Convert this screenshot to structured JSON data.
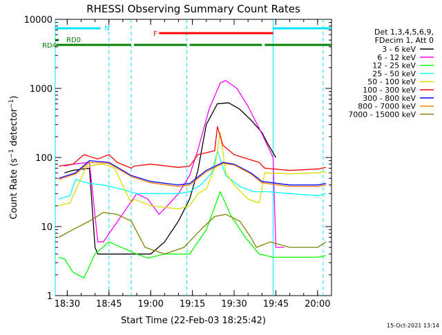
{
  "chart_data": {
    "type": "line",
    "title": "RHESSI Observing Summary Count Rates",
    "xlabel": "Start Time (22-Feb-03 18:25:42)",
    "ylabel": "Count Rate (s⁻¹ detector⁻¹)",
    "ylabel_parts": {
      "main": "Count Rate (s",
      "sup1": "−1",
      "mid": " detector",
      "sup2": "−1",
      "end": ")"
    },
    "y_scale": "log",
    "ylim": [
      1,
      10000
    ],
    "xlim": [
      "18:25:42",
      "20:05:00"
    ],
    "y_ticks": [
      {
        "value": 1,
        "label": "1"
      },
      {
        "value": 10,
        "label": "10"
      },
      {
        "value": 100,
        "label": "100"
      },
      {
        "value": 1000,
        "label": "1000"
      },
      {
        "value": 10000,
        "label": "10000"
      }
    ],
    "x_ticks": [
      {
        "t": "18:30",
        "label": "18:30"
      },
      {
        "t": "18:45",
        "label": "18:45"
      },
      {
        "t": "19:00",
        "label": "19:00"
      },
      {
        "t": "19:15",
        "label": "19:15"
      },
      {
        "t": "19:30",
        "label": "19:30"
      },
      {
        "t": "19:45",
        "label": "19:45"
      },
      {
        "t": "20:00",
        "label": "20:00"
      }
    ],
    "legend": {
      "position": "right",
      "header": [
        "Det 1,3,4,5,6,9,",
        "FDecim 1, Att 0"
      ]
    },
    "series": [
      {
        "name": "3 - 6 keV",
        "color": "#000000",
        "x": [
          "18:29",
          "18:32",
          "18:38",
          "18:40",
          "18:41",
          "18:43",
          "19:00",
          "19:05",
          "19:10",
          "19:14",
          "19:17",
          "19:20",
          "19:24",
          "19:28",
          "19:32",
          "19:36",
          "19:40",
          "19:42",
          "19:45"
        ],
        "y": [
          60,
          65,
          70,
          5,
          4,
          4,
          4,
          6,
          12,
          25,
          65,
          300,
          600,
          620,
          500,
          350,
          230,
          160,
          100
        ]
      },
      {
        "name": "6 - 12 keV",
        "color": "#ff00ff",
        "x": [
          "18:29",
          "18:32",
          "18:38",
          "18:41",
          "18:43",
          "18:55",
          "18:59",
          "19:03",
          "19:06",
          "19:10",
          "19:14",
          "19:17",
          "19:21",
          "19:25",
          "19:27",
          "19:31",
          "19:35",
          "19:40",
          "19:44",
          "19:45",
          "19:46",
          "19:48"
        ],
        "y": [
          75,
          80,
          85,
          6,
          6,
          30,
          25,
          15,
          20,
          30,
          55,
          130,
          500,
          1200,
          1300,
          1000,
          550,
          220,
          100,
          5,
          5,
          5
        ]
      },
      {
        "name": "12 - 25 keV",
        "color": "#00ff00",
        "x": [
          "18:27",
          "18:29",
          "18:32",
          "18:36",
          "18:40",
          "18:45",
          "18:55",
          "18:59",
          "19:05",
          "19:14",
          "19:20",
          "19:25",
          "19:29",
          "19:34",
          "19:39",
          "19:44",
          "19:50",
          "20:00",
          "20:03"
        ],
        "y": [
          3.6,
          3.4,
          2.2,
          1.8,
          4,
          6,
          4,
          3.5,
          4,
          4,
          9,
          32,
          14,
          7,
          4,
          3.6,
          3.6,
          3.6,
          3.8
        ]
      },
      {
        "name": "25 - 50 keV",
        "color": "#00ffff",
        "x": [
          "18:27",
          "18:31",
          "18:33",
          "18:38",
          "18:43",
          "18:48",
          "18:55",
          "19:00",
          "19:10",
          "19:14",
          "19:18",
          "19:22",
          "19:24",
          "19:27",
          "19:32",
          "19:37",
          "19:42",
          "19:50",
          "20:00",
          "20:03"
        ],
        "y": [
          25,
          28,
          48,
          42,
          40,
          36,
          30,
          30,
          30,
          32,
          40,
          60,
          125,
          55,
          38,
          32,
          32,
          30,
          28,
          30
        ]
      },
      {
        "name": "50 - 100 keV",
        "color": "#dddd00",
        "x": [
          "18:27",
          "18:31",
          "18:37",
          "18:43",
          "18:47",
          "18:53",
          "18:54",
          "19:00",
          "19:10",
          "19:14",
          "19:17",
          "19:20",
          "19:23",
          "19:25",
          "19:27",
          "19:30",
          "19:35",
          "19:39",
          "19:41",
          "19:50",
          "20:00",
          "20:03"
        ],
        "y": [
          20,
          22,
          75,
          80,
          70,
          22,
          25,
          20,
          18,
          20,
          30,
          35,
          70,
          230,
          60,
          40,
          25,
          22,
          60,
          58,
          60,
          62
        ]
      },
      {
        "name": "100 - 300 keV",
        "color": "#ff0000",
        "x": [
          "18:27",
          "18:32",
          "18:36",
          "18:41",
          "18:45",
          "18:48",
          "18:53",
          "18:54",
          "19:00",
          "19:10",
          "19:14",
          "19:17",
          "19:23",
          "19:24",
          "19:26",
          "19:30",
          "19:35",
          "19:39",
          "19:41",
          "19:50",
          "20:00",
          "20:03"
        ],
        "y": [
          75,
          80,
          110,
          95,
          110,
          85,
          70,
          75,
          80,
          72,
          75,
          110,
          125,
          280,
          150,
          110,
          95,
          85,
          70,
          65,
          68,
          72
        ]
      },
      {
        "name": "300 - 800 keV",
        "color": "#0000ff",
        "x": [
          "18:27",
          "18:33",
          "18:38",
          "18:45",
          "18:53",
          "19:00",
          "19:10",
          "19:14",
          "19:20",
          "19:26",
          "19:30",
          "19:36",
          "19:40",
          "19:50",
          "20:00",
          "20:03"
        ],
        "y": [
          50,
          60,
          90,
          85,
          55,
          45,
          40,
          42,
          65,
          85,
          80,
          60,
          45,
          40,
          40,
          42
        ]
      },
      {
        "name": "800 - 7000 keV",
        "color": "#ff8000",
        "x": [
          "18:27",
          "18:33",
          "18:38",
          "18:45",
          "18:53",
          "19:00",
          "19:10",
          "19:14",
          "19:20",
          "19:26",
          "19:30",
          "19:36",
          "19:40",
          "19:50",
          "20:00",
          "20:03"
        ],
        "y": [
          48,
          58,
          85,
          82,
          53,
          43,
          38,
          40,
          62,
          82,
          78,
          58,
          43,
          38,
          38,
          40
        ]
      },
      {
        "name": "7000 - 15000 keV",
        "color": "#808000",
        "x": [
          "18:27",
          "18:32",
          "18:38",
          "18:43",
          "18:48",
          "18:53",
          "18:58",
          "19:05",
          "19:12",
          "19:18",
          "19:23",
          "19:27",
          "19:32",
          "19:36",
          "19:38",
          "19:43",
          "19:50",
          "20:00",
          "20:03"
        ],
        "y": [
          7,
          9,
          12,
          16,
          15,
          12,
          5,
          4,
          5,
          9,
          14,
          15,
          12,
          7,
          5,
          6,
          5,
          5,
          6
        ]
      }
    ],
    "annotations": {
      "labels": [
        {
          "text": "N",
          "color": "#00e5ff"
        },
        {
          "text": "F",
          "color": "#ff0000"
        },
        {
          "text": "RD0",
          "color": "#008000"
        },
        {
          "text": "RD4",
          "color": "#008000"
        }
      ],
      "night_bars": [
        [
          "18:25:42",
          "18:42"
        ],
        [
          "19:44",
          "20:05"
        ]
      ],
      "flare_bar": [
        "19:03",
        "19:44"
      ],
      "rd0_bars": [
        [
          "18:25:42",
          "18:27"
        ]
      ],
      "rd4_bars": [
        [
          "18:26",
          "18:53"
        ],
        [
          "18:54",
          "19:13"
        ],
        [
          "19:14",
          "19:40"
        ],
        [
          "19:41",
          "20:05"
        ]
      ],
      "night_lines_solid": [
        "18:25:42",
        "19:44"
      ],
      "night_lines_dashed": [
        "18:45",
        "20:02"
      ],
      "saa_lines_dashed": [
        "18:53",
        "19:13"
      ]
    },
    "grid": false
  },
  "footer": {
    "timestamp": "15-Oct-2021 13:14"
  }
}
